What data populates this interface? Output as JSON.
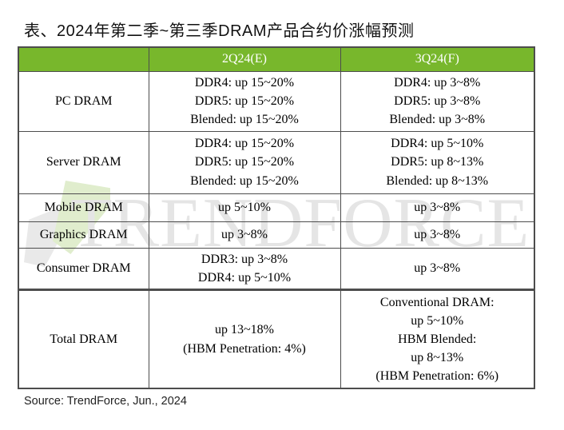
{
  "chart_data": {
    "type": "table",
    "title": "表、2024年第二季~第三季DRAM产品合约价涨幅预测",
    "columns": [
      "",
      "2Q24(E)",
      "3Q24(F)"
    ],
    "rows": [
      {
        "label": "PC DRAM",
        "q2_lines": [
          "DDR4: up 15~20%",
          "DDR5: up 15~20%",
          "Blended: up 15~20%"
        ],
        "q3_lines": [
          "DDR4: up 3~8%",
          "DDR5: up 3~8%",
          "Blended: up 3~8%"
        ]
      },
      {
        "label": "Server DRAM",
        "q2_lines": [
          "DDR4: up 15~20%",
          "DDR5: up 15~20%",
          "Blended: up 15~20%"
        ],
        "q3_lines": [
          "DDR4: up 5~10%",
          "DDR5: up 8~13%",
          "Blended: up 8~13%"
        ]
      },
      {
        "label": "Mobile DRAM",
        "q2_lines": [
          "up 5~10%"
        ],
        "q3_lines": [
          "up 3~8%"
        ]
      },
      {
        "label": "Graphics DRAM",
        "q2_lines": [
          "up 3~8%"
        ],
        "q3_lines": [
          "up 3~8%"
        ]
      },
      {
        "label": "Consumer DRAM",
        "q2_lines": [
          "DDR3: up 3~8%",
          "DDR4: up 5~10%"
        ],
        "q3_lines": [
          "up 3~8%"
        ]
      },
      {
        "label": "Total DRAM",
        "q2_lines": [
          "up 13~18%",
          "(HBM Penetration: 4%)"
        ],
        "q3_lines": [
          "Conventional DRAM:",
          "up 5~10%",
          "HBM Blended:",
          "up 8~13%",
          "(HBM Penetration: 6%)"
        ]
      }
    ],
    "source": "Source: TrendForce, Jun., 2024"
  },
  "watermark": {
    "text": "TRENDFORCE"
  },
  "colors": {
    "header_green": "#78B72C",
    "border_dark": "#4d4d4d",
    "watermark_gray": "#e5e5e5",
    "logo_green": "#e0edcd",
    "logo_gray": "#e9e9e9"
  }
}
